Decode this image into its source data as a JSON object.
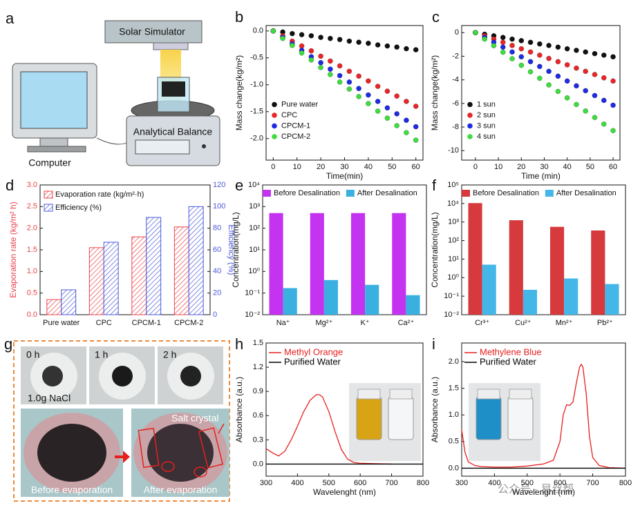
{
  "chart_data": [
    {
      "type": "scatter",
      "xlabel": "Time(min)",
      "ylabel": "Mass change(kg/m²)",
      "xlim": [
        -3,
        63
      ],
      "xticks": [
        0,
        10,
        20,
        30,
        40,
        50,
        60
      ],
      "ylim": [
        -2.4,
        0.1
      ],
      "yticks": [
        {
          "value": 0,
          "label": "0.0"
        },
        -0.5,
        {
          "value": -1,
          "label": "-1.0"
        },
        -1.5,
        {
          "value": -2,
          "label": "-2.0"
        }
      ],
      "x": [
        0,
        4,
        8,
        12,
        16,
        20,
        24,
        28,
        32,
        36,
        40,
        44,
        48,
        52,
        56,
        60
      ],
      "legend": "lower left",
      "series": [
        {
          "name": "Pure water",
          "color": "#111111",
          "values": [
            0,
            -0.02,
            -0.05,
            -0.07,
            -0.09,
            -0.12,
            -0.14,
            -0.16,
            -0.19,
            -0.21,
            -0.23,
            -0.26,
            -0.28,
            -0.3,
            -0.33,
            -0.35
          ]
        },
        {
          "name": "CPC",
          "color": "#e8262a",
          "values": [
            0,
            -0.09,
            -0.19,
            -0.28,
            -0.37,
            -0.47,
            -0.56,
            -0.65,
            -0.75,
            -0.84,
            -0.93,
            -1.03,
            -1.12,
            -1.21,
            -1.31,
            -1.4
          ]
        },
        {
          "name": "CPCM-1",
          "color": "#1f2be0",
          "values": [
            0,
            -0.12,
            -0.24,
            -0.36,
            -0.48,
            -0.59,
            -0.71,
            -0.83,
            -0.95,
            -1.07,
            -1.19,
            -1.31,
            -1.43,
            -1.54,
            -1.66,
            -1.78
          ]
        },
        {
          "name": "CPCM-2",
          "color": "#3fdc3f",
          "values": [
            0,
            -0.14,
            -0.27,
            -0.41,
            -0.54,
            -0.68,
            -0.81,
            -0.95,
            -1.08,
            -1.22,
            -1.35,
            -1.49,
            -1.62,
            -1.76,
            -1.89,
            -2.03
          ]
        }
      ]
    },
    {
      "type": "scatter",
      "xlabel": "Time (min)",
      "ylabel": "Mass change(kg/m²)",
      "xlim": [
        -6,
        63
      ],
      "xticks": [
        0,
        10,
        20,
        30,
        40,
        50,
        60
      ],
      "ylim": [
        -10.8,
        0.6
      ],
      "yticks": [
        0,
        -2,
        -4,
        -6,
        -8,
        -10
      ],
      "x": [
        0,
        4,
        8,
        12,
        16,
        20,
        24,
        28,
        32,
        36,
        40,
        44,
        48,
        52,
        56,
        60
      ],
      "legend": "lower left",
      "series": [
        {
          "name": "1 sun",
          "color": "#111111",
          "values": [
            0,
            -0.14,
            -0.27,
            -0.41,
            -0.55,
            -0.68,
            -0.82,
            -0.96,
            -1.09,
            -1.23,
            -1.37,
            -1.5,
            -1.64,
            -1.78,
            -1.91,
            -2.05
          ]
        },
        {
          "name": "2 sun",
          "color": "#e8262a",
          "values": [
            0,
            -0.27,
            -0.55,
            -0.82,
            -1.09,
            -1.37,
            -1.64,
            -1.91,
            -2.19,
            -2.46,
            -2.73,
            -3.01,
            -3.28,
            -3.55,
            -3.83,
            -4.1
          ]
        },
        {
          "name": "3 sun",
          "color": "#1f2be0",
          "values": [
            0,
            -0.41,
            -0.82,
            -1.23,
            -1.64,
            -2.05,
            -2.46,
            -2.87,
            -3.28,
            -3.69,
            -4.1,
            -4.51,
            -4.92,
            -5.33,
            -5.74,
            -6.15
          ]
        },
        {
          "name": "4 sun",
          "color": "#3fdc3f",
          "values": [
            0,
            -0.55,
            -1.11,
            -1.66,
            -2.21,
            -2.77,
            -3.32,
            -3.87,
            -4.43,
            -4.98,
            -5.53,
            -6.09,
            -6.64,
            -7.19,
            -7.75,
            -8.3
          ]
        }
      ]
    },
    {
      "type": "bar",
      "ylabel": "Evaporation rate (kg/m² h)",
      "y2label": "Efficiency (%)",
      "ylabel_color": "#e8424a",
      "y2label_color": "#4a58d8",
      "hatch": true,
      "legend": "upper left",
      "categories": [
        "Pure water",
        "CPC",
        "CPCM-1",
        "CPCM-2"
      ],
      "ylim": [
        0,
        3
      ],
      "yticks": [
        {
          "value": 0,
          "label": "0.0"
        },
        0.5,
        {
          "value": 1,
          "label": "1.0"
        },
        1.5,
        {
          "value": 2,
          "label": "2.0"
        },
        2.5,
        {
          "value": 3,
          "label": "3.0"
        }
      ],
      "y2lim": [
        0,
        120
      ],
      "y2ticks": [
        0,
        20,
        40,
        60,
        80,
        100,
        120
      ],
      "series": [
        {
          "name": "Evaporation rate (kg/m²·h)",
          "color": "#e8424a",
          "values": [
            0.35,
            1.55,
            1.8,
            2.03
          ]
        },
        {
          "name": "Efficiency (%)",
          "color": "#4a58d8",
          "axis": "y2",
          "values": [
            23,
            67,
            90,
            100
          ]
        }
      ]
    },
    {
      "type": "bar",
      "ylabel": "Concentration(mg/L)",
      "log_scale": true,
      "legend": "top",
      "categories": [
        "Na⁺",
        "Mg²⁺",
        "K⁺",
        "Ca²⁺"
      ],
      "ylim": [
        0.01,
        10000
      ],
      "yticks": [
        {
          "value": 0.01,
          "label": "10⁻²"
        },
        {
          "value": 0.1,
          "label": "10⁻¹"
        },
        {
          "value": 1,
          "label": "10⁰"
        },
        {
          "value": 10,
          "label": "10¹"
        },
        {
          "value": 100,
          "label": "10²"
        },
        {
          "value": 1000,
          "label": "10³"
        },
        {
          "value": 10000,
          "label": "10⁴"
        }
      ],
      "series": [
        {
          "name": "Before Desalination",
          "color": "#c433f0",
          "values": [
            500,
            500,
            500,
            500
          ]
        },
        {
          "name": "After Desalination",
          "color": "#3ab0e0",
          "values": [
            0.17,
            0.4,
            0.24,
            0.08
          ]
        }
      ]
    },
    {
      "type": "bar",
      "ylabel": "Concentration(mg/L)",
      "log_scale": true,
      "legend": "top",
      "categories": [
        "Cr³⁺",
        "Cu²⁺",
        "Mn²⁺",
        "Pb²⁺"
      ],
      "ylim": [
        0.01,
        100000
      ],
      "yticks": [
        {
          "value": 0.01,
          "label": "10⁻²"
        },
        {
          "value": 0.1,
          "label": "10⁻¹"
        },
        {
          "value": 1,
          "label": "10⁰"
        },
        {
          "value": 10,
          "label": "10¹"
        },
        {
          "value": 100,
          "label": "10²"
        },
        {
          "value": 1000,
          "label": "10³"
        },
        {
          "value": 10000,
          "label": "10⁴"
        },
        {
          "value": 100000,
          "label": "10⁵"
        }
      ],
      "series": [
        {
          "name": "Before Desalination",
          "color": "#d63a3c",
          "values": [
            10500,
            1250,
            550,
            350
          ]
        },
        {
          "name": "After Desalination",
          "color": "#45b6e8",
          "values": [
            5,
            0.22,
            0.9,
            0.45
          ]
        }
      ]
    },
    {
      "type": "line",
      "xlabel": "Wavelenght (nm)",
      "ylabel": "Absorbance (a.u.)",
      "legend": "upper left",
      "xlim": [
        300,
        800
      ],
      "xticks": [
        300,
        400,
        500,
        600,
        700,
        800
      ],
      "ylim": [
        -0.15,
        1.5
      ],
      "yticks": [
        {
          "value": 0,
          "label": "0.0"
        },
        0.3,
        0.6,
        0.9,
        1.2,
        1.5
      ],
      "series": [
        {
          "name": "Methyl Orange",
          "color": "#e81c1c",
          "x": [
            300,
            320,
            340,
            360,
            380,
            400,
            420,
            440,
            460,
            470,
            480,
            500,
            520,
            540,
            560,
            580,
            600,
            650,
            700
          ],
          "values": [
            0.19,
            0.14,
            0.1,
            0.16,
            0.3,
            0.47,
            0.65,
            0.79,
            0.86,
            0.86,
            0.83,
            0.65,
            0.4,
            0.18,
            0.06,
            0.02,
            0.01,
            0.005,
            0
          ]
        },
        {
          "name": "Purified Water",
          "color": "#000000",
          "x": [
            300,
            800
          ],
          "values": [
            0,
            0
          ]
        }
      ]
    },
    {
      "type": "line",
      "xlabel": "Wavelenght (nm)",
      "ylabel": "Absorbance (a.u.)",
      "legend": "upper left",
      "xlim": [
        300,
        800
      ],
      "xticks": [
        300,
        400,
        500,
        600,
        700,
        800
      ],
      "ylim": [
        -0.15,
        2.35
      ],
      "yticks": [
        {
          "value": 0,
          "label": "0.0"
        },
        0.5,
        {
          "value": 1,
          "label": "1.0"
        },
        1.5,
        {
          "value": 2,
          "label": "2.0"
        }
      ],
      "series": [
        {
          "name": "Methylene Blue",
          "color": "#e81c1c",
          "x": [
            300,
            310,
            320,
            340,
            360,
            400,
            450,
            500,
            550,
            580,
            600,
            610,
            620,
            630,
            640,
            650,
            660,
            665,
            670,
            680,
            690,
            700,
            720,
            750,
            800
          ],
          "values": [
            0.72,
            0.3,
            0.12,
            0.05,
            0.03,
            0.02,
            0.02,
            0.04,
            0.08,
            0.15,
            0.5,
            1.0,
            1.19,
            1.18,
            1.25,
            1.6,
            1.9,
            1.95,
            1.9,
            1.4,
            0.6,
            0.2,
            0.05,
            0.01,
            0
          ]
        },
        {
          "name": "Purified Water",
          "color": "#000000",
          "x": [
            300,
            800
          ],
          "values": [
            0,
            0
          ]
        }
      ]
    }
  ],
  "panel_labels": [
    "a",
    "b",
    "c",
    "d",
    "e",
    "f",
    "g",
    "h",
    "i"
  ],
  "illustration": {
    "solar_simulator": "Solar Simulator",
    "analytical_balance": "Analytical Balance",
    "computer": "Computer"
  },
  "photos": {
    "times": [
      "0 h",
      "1 h",
      "2 h"
    ],
    "salt": "1.0g NaCl",
    "before": "Before evaporation",
    "after": "After evaporation",
    "salt_crystal": "Salt crystal"
  },
  "watermark": "公众号 · 易丝帮"
}
